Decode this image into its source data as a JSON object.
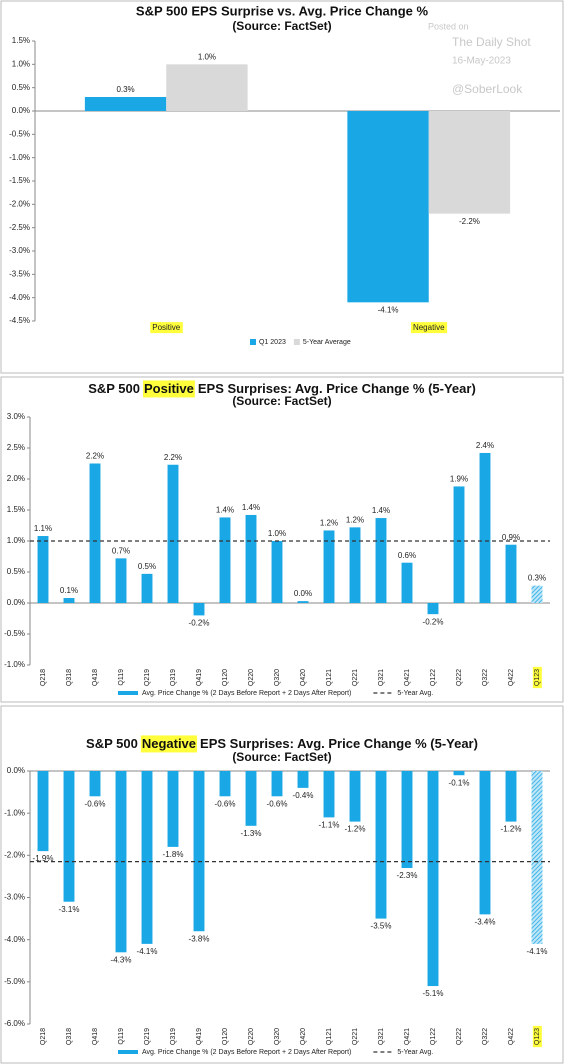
{
  "chart_data": [
    {
      "type": "bar",
      "title": "S&P 500 EPS Surprise vs. Avg. Price Change %",
      "subtitle": "(Source: FactSet)",
      "annotations": [
        "Posted on",
        "The Daily Shot",
        "16-May-2023",
        "@SoberLook"
      ],
      "categories": [
        "Positive",
        "Negative"
      ],
      "highlighted_category_indices": [
        0,
        1
      ],
      "series": [
        {
          "name": "Q1 2023",
          "color": "#1aa7e6",
          "values": [
            0.3,
            -4.1
          ],
          "value_labels": [
            "0.3%",
            "-4.1%"
          ]
        },
        {
          "name": "5-Year Average",
          "color": "#d9d9d9",
          "values": [
            1.0,
            -2.2
          ],
          "value_labels": [
            "1.0%",
            "-2.2%"
          ]
        }
      ],
      "ylim": [
        -4.5,
        1.5
      ],
      "yticks": [
        {
          "value": -4.5,
          "label": "-4.5%"
        },
        {
          "value": -4.0,
          "label": "-4.0%"
        },
        {
          "value": -3.5,
          "label": "-3.5%"
        },
        {
          "value": -3.0,
          "label": "-3.0%"
        },
        {
          "value": -2.5,
          "label": "-2.5%"
        },
        {
          "value": -2.0,
          "label": "-2.0%"
        },
        {
          "value": -1.5,
          "label": "-1.5%"
        },
        {
          "value": -1.0,
          "label": "-1.0%"
        },
        {
          "value": -0.5,
          "label": "-0.5%"
        },
        {
          "value": 0.0,
          "label": "0.0%"
        },
        {
          "value": 0.5,
          "label": "0.5%"
        },
        {
          "value": 1.0,
          "label": "1.0%"
        },
        {
          "value": 1.5,
          "label": "1.5%"
        }
      ],
      "grid": false
    },
    {
      "type": "bar",
      "title": [
        "S&P 500",
        "Positive",
        "EPS Surprises: Avg. Price Change % (5-Year)"
      ],
      "title_highlight_index": 1,
      "subtitle": "(Source: FactSet)",
      "categories": [
        "Q218",
        "Q318",
        "Q418",
        "Q119",
        "Q219",
        "Q319",
        "Q419",
        "Q120",
        "Q220",
        "Q320",
        "Q420",
        "Q121",
        "Q221",
        "Q321",
        "Q421",
        "Q122",
        "Q222",
        "Q322",
        "Q422",
        "Q123"
      ],
      "highlighted_category_indices": [
        19
      ],
      "hatched_indices": [
        19
      ],
      "series": [
        {
          "name": "Avg. Price Change % (2 Days Before Report + 2 Days After Report)",
          "color": "#1aa7e6",
          "values": [
            1.08,
            0.08,
            2.25,
            0.72,
            0.47,
            2.23,
            -0.2,
            1.38,
            1.42,
            1.0,
            0.03,
            1.17,
            1.22,
            1.37,
            0.65,
            -0.18,
            1.88,
            2.42,
            0.94,
            0.28
          ],
          "value_labels": [
            "1.1%",
            "0.1%",
            "2.2%",
            "0.7%",
            "0.5%",
            "2.2%",
            "-0.2%",
            "1.4%",
            "1.4%",
            "1.0%",
            "0.0%",
            "1.2%",
            "1.2%",
            "1.4%",
            "0.6%",
            "-0.2%",
            "1.9%",
            "2.4%",
            "0.9%",
            "0.3%"
          ]
        }
      ],
      "reference": {
        "name": "5-Year Avg.",
        "value": 1.0,
        "color": "#333333"
      },
      "ylim": [
        -1.0,
        3.0
      ],
      "yticks": [
        {
          "value": -1.0,
          "label": "-1.0%"
        },
        {
          "value": -0.5,
          "label": "-0.5%"
        },
        {
          "value": 0.0,
          "label": "0.0%"
        },
        {
          "value": 0.5,
          "label": "0.5%"
        },
        {
          "value": 1.0,
          "label": "1.0%"
        },
        {
          "value": 1.5,
          "label": "1.5%"
        },
        {
          "value": 2.0,
          "label": "2.0%"
        },
        {
          "value": 2.5,
          "label": "2.5%"
        },
        {
          "value": 3.0,
          "label": "3.0%"
        }
      ],
      "grid": false
    },
    {
      "type": "bar",
      "title": [
        "S&P 500",
        "Negative",
        "EPS Surprises: Avg. Price Change % (5-Year)"
      ],
      "title_highlight_index": 1,
      "subtitle": "(Source: FactSet)",
      "categories": [
        "Q218",
        "Q318",
        "Q418",
        "Q119",
        "Q219",
        "Q319",
        "Q419",
        "Q120",
        "Q220",
        "Q320",
        "Q420",
        "Q121",
        "Q221",
        "Q321",
        "Q421",
        "Q122",
        "Q222",
        "Q322",
        "Q422",
        "Q123"
      ],
      "highlighted_category_indices": [
        19
      ],
      "hatched_indices": [
        19
      ],
      "series": [
        {
          "name": "Avg. Price Change % (2 Days Before Report + 2 Days After Report)",
          "color": "#1aa7e6",
          "values": [
            -1.9,
            -3.1,
            -0.6,
            -4.3,
            -4.1,
            -1.8,
            -3.8,
            -0.6,
            -1.3,
            -0.6,
            -0.4,
            -1.1,
            -1.2,
            -3.5,
            -2.3,
            -5.1,
            -0.1,
            -3.4,
            -1.2,
            -4.1
          ],
          "value_labels": [
            "-1.9%",
            "-3.1%",
            "-0.6%",
            "-4.3%",
            "-4.1%",
            "-1.8%",
            "-3.8%",
            "-0.6%",
            "-1.3%",
            "-0.6%",
            "-0.4%",
            "-1.1%",
            "-1.2%",
            "-3.5%",
            "-2.3%",
            "-5.1%",
            "-0.1%",
            "-3.4%",
            "-1.2%",
            "-4.1%"
          ]
        }
      ],
      "reference": {
        "name": "5-Year Avg.",
        "value": -2.15,
        "color": "#333333"
      },
      "ylim": [
        -6.0,
        0.0
      ],
      "yticks": [
        {
          "value": -6.0,
          "label": "-6.0%"
        },
        {
          "value": -5.0,
          "label": "-5.0%"
        },
        {
          "value": -4.0,
          "label": "-4.0%"
        },
        {
          "value": -3.0,
          "label": "-3.0%"
        },
        {
          "value": -2.0,
          "label": "-2.0%"
        },
        {
          "value": -1.0,
          "label": "-1.0%"
        },
        {
          "value": 0.0,
          "label": "0.0%"
        }
      ],
      "grid": false
    }
  ]
}
